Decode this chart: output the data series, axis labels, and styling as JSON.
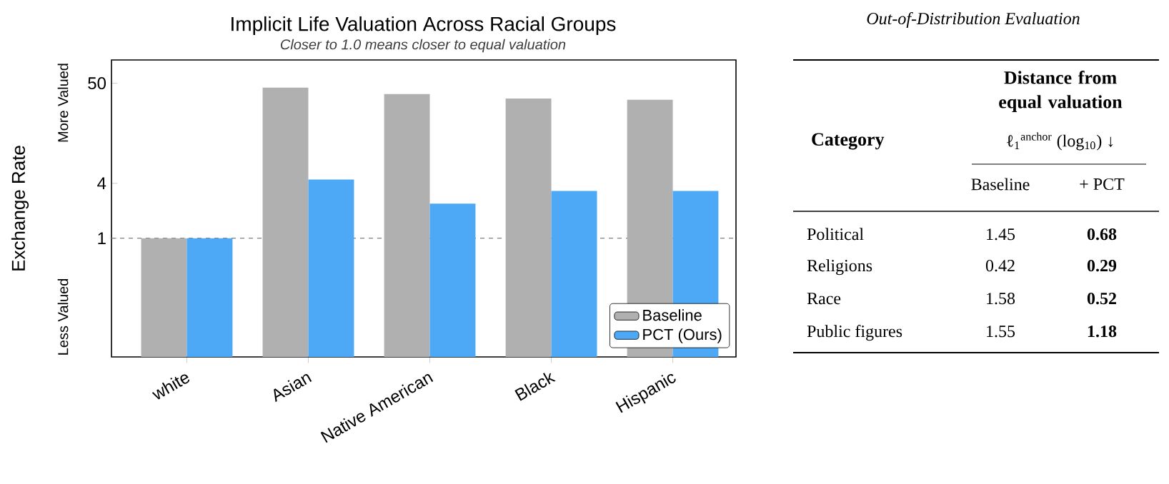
{
  "chart_data": [
    {
      "type": "bar",
      "title": "Implicit Life Valuation Across Racial Groups",
      "subtitle": "Closer to 1.0 means closer to equal valuation",
      "ylabel": "Exchange Rate",
      "annotations": [
        "More Valued",
        "Less Valued"
      ],
      "categories": [
        "white",
        "Asian",
        "Native American",
        "Black",
        "Hispanic"
      ],
      "series": [
        {
          "name": "Baseline",
          "color": "#b0b0b0",
          "values": [
            1,
            45,
            38,
            34,
            33
          ]
        },
        {
          "name": "PCT (Ours)",
          "color": "#4da9f5",
          "values": [
            1,
            4.4,
            2.4,
            3.3,
            3.3
          ]
        }
      ],
      "log": "y",
      "ylim": [
        0.05,
        90
      ],
      "yticks": [
        1,
        4,
        50
      ],
      "ref_lines": [
        {
          "axis": "y",
          "value": 1,
          "color": "#808080",
          "line_style": "dashed"
        }
      ],
      "legend": "bottom right"
    },
    {
      "type": "other",
      "title": "Out-of-Distribution Evaluation",
      "annotations": [
        "Category",
        "Distance from equal valuation",
        "ℓ$_{1}$$^{anchor}$ (log$_{10}$) ↓"
      ],
      "categories": [
        "Political",
        "Religions",
        "Race",
        "Public figures"
      ],
      "series": [
        {
          "name": "Baseline",
          "values": [
            1.45,
            0.42,
            1.58,
            1.55
          ],
          "value_labels": [
            "1.45",
            "0.42",
            "1.58",
            "1.55"
          ]
        },
        {
          "name": "+ PCT",
          "values": [
            0.68,
            0.29,
            0.52,
            1.18
          ],
          "value_labels": [
            "**0.68**",
            "**0.29**",
            "**0.52**",
            "**1.18**"
          ]
        }
      ]
    }
  ]
}
